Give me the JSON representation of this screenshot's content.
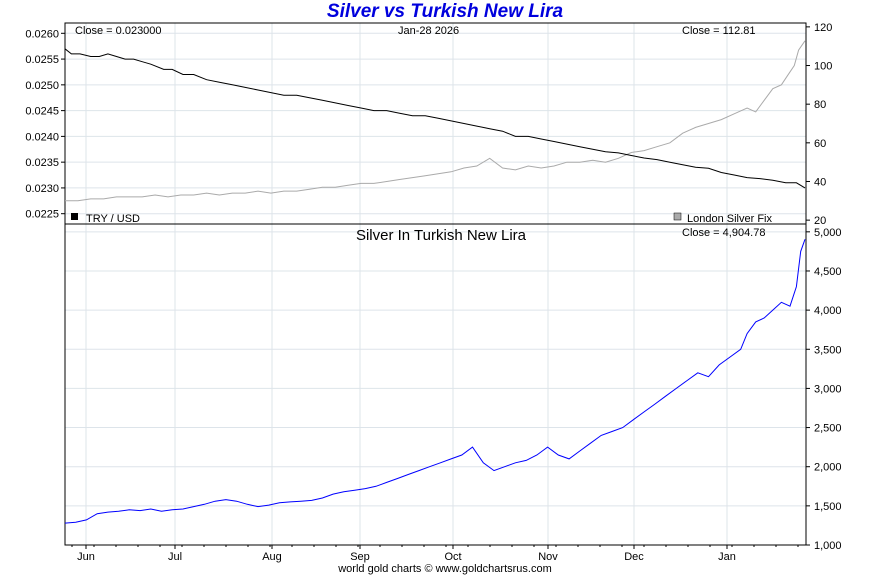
{
  "title": "Silver vs Turkish New Lira",
  "footer": "world gold charts © www.goldchartsrus.com",
  "colors": {
    "title": "#0000dd",
    "try_line": "#000000",
    "silver_line": "#aaaaaa",
    "silver_try_line": "#0000ff",
    "grid": "#dde4ea"
  },
  "chart_data": [
    {
      "type": "line",
      "panel": "top",
      "title": "",
      "date_label": "Jan-28  2026",
      "x_months": [
        "Jun",
        "Jul",
        "Aug",
        "Sep",
        "Oct",
        "Nov",
        "Dec",
        "Jan"
      ],
      "left_axis": {
        "ylim": [
          0.0223,
          0.0262
        ],
        "ticks": [
          "0.0260",
          "0.0255",
          "0.0250",
          "0.0245",
          "0.0240",
          "0.0235",
          "0.0230",
          "0.0225"
        ],
        "tick_values": [
          0.026,
          0.0255,
          0.025,
          0.0245,
          0.024,
          0.0235,
          0.023,
          0.0225
        ]
      },
      "right_axis": {
        "ylim": [
          18,
          122
        ],
        "ticks": [
          "120",
          "100",
          "80",
          "60",
          "40",
          "20"
        ],
        "tick_values": [
          120,
          100,
          80,
          60,
          40,
          20
        ]
      },
      "close_left": "Close = 0.023000",
      "close_right": "Close = 112.81",
      "legend": [
        {
          "label": "TRY / USD",
          "swatch": "#000000"
        },
        {
          "label": "London Silver Fix",
          "swatch": "#aaaaaa"
        }
      ],
      "series": [
        {
          "name": "TRY / USD",
          "axis": "left",
          "color": "#000000",
          "x": [
            0,
            3,
            7,
            12,
            16,
            20,
            24,
            28,
            32,
            36,
            40,
            46,
            50,
            55,
            60,
            66,
            72,
            78,
            84,
            90,
            96,
            102,
            108,
            114,
            120,
            126,
            132,
            138,
            144,
            150,
            156,
            162,
            168,
            174,
            180,
            186,
            192,
            198,
            204,
            210,
            216,
            222,
            228,
            234,
            240,
            246,
            252,
            258,
            264,
            270,
            276,
            282,
            288,
            294,
            300,
            306,
            312,
            318,
            324,
            330,
            336,
            341,
            345
          ],
          "y": [
            0.0257,
            0.0256,
            0.0256,
            0.02555,
            0.02555,
            0.0256,
            0.02555,
            0.0255,
            0.0255,
            0.02545,
            0.0254,
            0.0253,
            0.0253,
            0.0252,
            0.0252,
            0.0251,
            0.02505,
            0.025,
            0.02495,
            0.0249,
            0.02485,
            0.0248,
            0.0248,
            0.02475,
            0.0247,
            0.02465,
            0.0246,
            0.02455,
            0.0245,
            0.0245,
            0.02445,
            0.0244,
            0.0244,
            0.02435,
            0.0243,
            0.02425,
            0.0242,
            0.02415,
            0.0241,
            0.024,
            0.024,
            0.02395,
            0.0239,
            0.02385,
            0.0238,
            0.02375,
            0.0237,
            0.02368,
            0.02363,
            0.02358,
            0.02355,
            0.0235,
            0.02345,
            0.0234,
            0.02338,
            0.0233,
            0.02325,
            0.0232,
            0.02318,
            0.02315,
            0.0231,
            0.0231,
            0.023
          ]
        },
        {
          "name": "London Silver Fix",
          "axis": "right",
          "color": "#aaaaaa",
          "x": [
            0,
            6,
            12,
            18,
            24,
            30,
            36,
            42,
            48,
            54,
            60,
            66,
            72,
            78,
            84,
            90,
            96,
            102,
            108,
            114,
            120,
            126,
            132,
            138,
            144,
            150,
            156,
            162,
            168,
            174,
            180,
            186,
            192,
            198,
            204,
            210,
            216,
            222,
            228,
            234,
            240,
            246,
            252,
            258,
            264,
            270,
            276,
            282,
            288,
            294,
            300,
            306,
            312,
            318,
            322,
            326,
            330,
            334,
            337,
            340,
            342,
            345
          ],
          "y": [
            30,
            30,
            31,
            31,
            32,
            32,
            32,
            33,
            32,
            33,
            33,
            34,
            33,
            34,
            34,
            35,
            34,
            35,
            35,
            36,
            37,
            37,
            38,
            39,
            39,
            40,
            41,
            42,
            43,
            44,
            45,
            47,
            48,
            52,
            47,
            46,
            48,
            47,
            48,
            50,
            50,
            51,
            50,
            52,
            55,
            56,
            58,
            60,
            65,
            68,
            70,
            72,
            75,
            78,
            76,
            82,
            88,
            90,
            95,
            100,
            108,
            112.81
          ]
        }
      ]
    },
    {
      "type": "line",
      "panel": "bottom",
      "title": "Silver In Turkish New Lira",
      "close_right": "Close = 4,904.78",
      "x_months": [
        "Jun",
        "Jul",
        "Aug",
        "Sep",
        "Oct",
        "Nov",
        "Dec",
        "Jan"
      ],
      "ylim": [
        1000,
        5100
      ],
      "ticks": [
        "5,000",
        "4,500",
        "4,000",
        "3,500",
        "3,000",
        "2,500",
        "2,000",
        "1,500",
        "1,000"
      ],
      "tick_values": [
        5000,
        4500,
        4000,
        3500,
        3000,
        2500,
        2000,
        1500,
        1000
      ],
      "series": [
        {
          "name": "Silver in TRY",
          "color": "#0000ff",
          "x": [
            0,
            5,
            10,
            15,
            20,
            25,
            30,
            35,
            40,
            45,
            50,
            55,
            60,
            65,
            70,
            75,
            80,
            85,
            90,
            95,
            100,
            105,
            110,
            115,
            120,
            125,
            130,
            135,
            140,
            145,
            150,
            155,
            160,
            165,
            170,
            175,
            180,
            185,
            190,
            195,
            200,
            205,
            210,
            215,
            220,
            225,
            230,
            235,
            240,
            245,
            250,
            255,
            260,
            265,
            270,
            275,
            280,
            285,
            290,
            295,
            300,
            305,
            310,
            315,
            318,
            322,
            326,
            330,
            334,
            338,
            341,
            343,
            345
          ],
          "y": [
            1280,
            1290,
            1320,
            1400,
            1420,
            1430,
            1450,
            1440,
            1460,
            1430,
            1450,
            1460,
            1490,
            1520,
            1560,
            1580,
            1560,
            1520,
            1490,
            1510,
            1540,
            1550,
            1560,
            1570,
            1600,
            1650,
            1680,
            1700,
            1720,
            1750,
            1800,
            1850,
            1900,
            1950,
            2000,
            2050,
            2100,
            2150,
            2250,
            2050,
            1950,
            2000,
            2050,
            2080,
            2150,
            2250,
            2150,
            2100,
            2200,
            2300,
            2400,
            2450,
            2500,
            2600,
            2700,
            2800,
            2900,
            3000,
            3100,
            3200,
            3150,
            3300,
            3400,
            3500,
            3700,
            3850,
            3900,
            4000,
            4100,
            4050,
            4300,
            4750,
            4904.78
          ]
        }
      ]
    }
  ]
}
